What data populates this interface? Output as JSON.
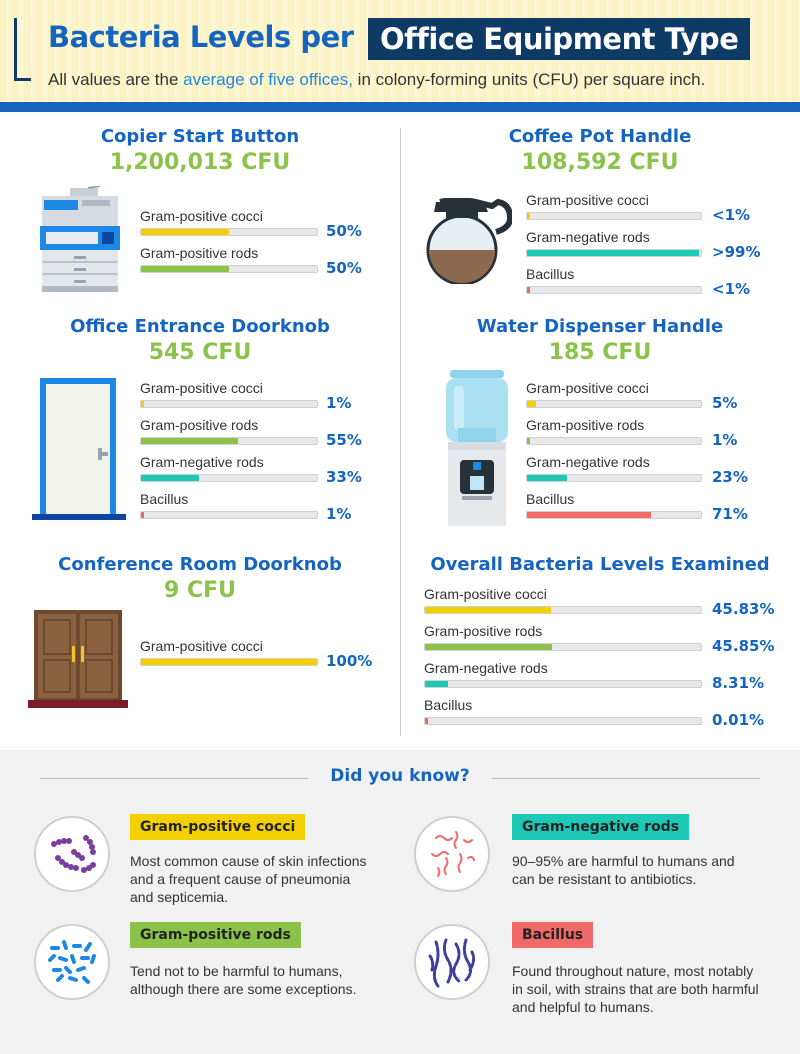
{
  "header": {
    "title_part1": "Bacteria Levels per",
    "title_part2": "Office Equipment Type",
    "subtitle_pre": "All values are the ",
    "subtitle_highlight": "average of five offices,",
    "subtitle_post": " in colony-forming units (CFU) per square inch."
  },
  "colors": {
    "gram_positive_cocci": "#f5d000",
    "gram_positive_rods": "#8bc34a",
    "gram_negative_rods": "#1ec8b6",
    "bacillus": "#f06a6a",
    "title_blue": "#1565c0",
    "cfu_green": "#8bc34a"
  },
  "panels": [
    {
      "id": "copier",
      "title": "Copier Start Button",
      "cfu": "1,200,013 CFU",
      "icon": "copier-icon",
      "bars": [
        {
          "label": "Gram-positive cocci",
          "pct": "50%",
          "fill": 0.5,
          "type": "gram_positive_cocci"
        },
        {
          "label": "Gram-positive rods",
          "pct": "50%",
          "fill": 0.5,
          "type": "gram_positive_rods"
        }
      ]
    },
    {
      "id": "coffee",
      "title": "Coffee Pot Handle",
      "cfu": "108,592 CFU",
      "icon": "coffee-pot-icon",
      "bars": [
        {
          "label": "Gram-positive cocci",
          "pct": "<1%",
          "fill": 0.01,
          "type": "gram_positive_cocci"
        },
        {
          "label": "Gram-negative rods",
          "pct": ">99%",
          "fill": 0.99,
          "type": "gram_negative_rods"
        },
        {
          "label": "Bacillus",
          "pct": "<1%",
          "fill": 0.01,
          "type": "bacillus"
        }
      ]
    },
    {
      "id": "doorknob",
      "title": "Office Entrance Doorknob",
      "cfu": "545 CFU",
      "icon": "door-icon",
      "bars": [
        {
          "label": "Gram-positive cocci",
          "pct": "1%",
          "fill": 0.01,
          "type": "gram_positive_cocci"
        },
        {
          "label": "Gram-positive rods",
          "pct": "55%",
          "fill": 0.55,
          "type": "gram_positive_rods"
        },
        {
          "label": "Gram-negative rods",
          "pct": "33%",
          "fill": 0.33,
          "type": "gram_negative_rods"
        },
        {
          "label": "Bacillus",
          "pct": "1%",
          "fill": 0.01,
          "type": "bacillus"
        }
      ]
    },
    {
      "id": "water",
      "title": "Water Dispenser Handle",
      "cfu": "185 CFU",
      "icon": "water-dispenser-icon",
      "bars": [
        {
          "label": "Gram-positive cocci",
          "pct": "5%",
          "fill": 0.05,
          "type": "gram_positive_cocci"
        },
        {
          "label": "Gram-positive rods",
          "pct": "1%",
          "fill": 0.01,
          "type": "gram_positive_rods"
        },
        {
          "label": "Gram-negative rods",
          "pct": "23%",
          "fill": 0.23,
          "type": "gram_negative_rods"
        },
        {
          "label": "Bacillus",
          "pct": "71%",
          "fill": 0.71,
          "type": "bacillus"
        }
      ]
    },
    {
      "id": "conference",
      "title": "Conference Room Doorknob",
      "cfu": "9 CFU",
      "icon": "double-door-icon",
      "bars": [
        {
          "label": "Gram-positive cocci",
          "pct": "100%",
          "fill": 1.0,
          "type": "gram_positive_cocci"
        }
      ]
    },
    {
      "id": "overall",
      "title": "Overall Bacteria Levels Examined",
      "cfu": "",
      "icon": "",
      "bars": [
        {
          "label": "Gram-positive cocci",
          "pct": "45.83%",
          "fill": 0.4583,
          "type": "gram_positive_cocci"
        },
        {
          "label": "Gram-positive rods",
          "pct": "45.85%",
          "fill": 0.4585,
          "type": "gram_positive_rods"
        },
        {
          "label": "Gram-negative rods",
          "pct": "8.31%",
          "fill": 0.0831,
          "type": "gram_negative_rods"
        },
        {
          "label": "Bacillus",
          "pct": "0.01%",
          "fill": 0.0001,
          "type": "bacillus"
        }
      ]
    }
  ],
  "did_you_know": {
    "title": "Did you know?",
    "items": [
      {
        "tag": "Gram-positive cocci",
        "type": "gram_positive_cocci",
        "icon": "cocci-chains-icon",
        "text": "Most common cause of skin infections and a frequent cause of pneumonia and septicemia."
      },
      {
        "tag": "Gram-negative rods",
        "type": "gram_negative_rods",
        "icon": "curly-rods-icon",
        "text": "90–95% are harmful to humans and can be resistant to antibiotics."
      },
      {
        "tag": "Gram-positive rods",
        "type": "gram_positive_rods",
        "icon": "short-rods-icon",
        "text": "Tend not to be harmful to humans, although there are some exceptions."
      },
      {
        "tag": "Bacillus",
        "type": "bacillus",
        "icon": "bacillus-chains-icon",
        "text": "Found throughout nature, most notably in soil, with strains that are both harmful and helpful to humans."
      }
    ]
  }
}
